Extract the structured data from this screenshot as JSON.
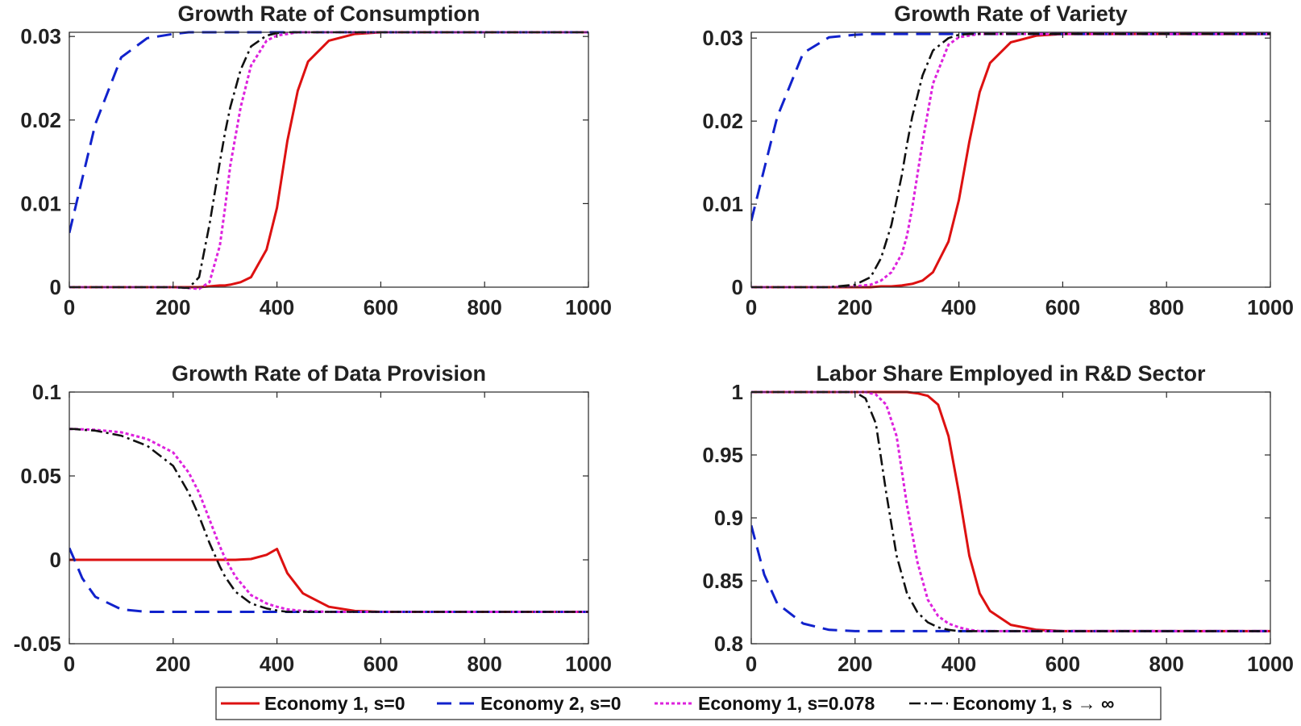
{
  "legend": {
    "entries": [
      {
        "label": "Economy 1, s=0",
        "color": "#dd1111",
        "dash": "solid"
      },
      {
        "label": "Economy 2, s=0",
        "color": "#1122cc",
        "dash": "dashed"
      },
      {
        "label": "Economy 1, s=0.078",
        "color": "#dd22dd",
        "dash": "dotted"
      },
      {
        "label": "Economy 1, s → ∞",
        "color": "#111111",
        "dash": "dashdot"
      }
    ]
  },
  "chart_data": [
    {
      "type": "line",
      "title": "Growth Rate of Consumption",
      "xlim": [
        0,
        1000
      ],
      "ylim": [
        0,
        0.0305
      ],
      "xticks": [
        0,
        200,
        400,
        600,
        800,
        1000
      ],
      "yticks": [
        0,
        0.01,
        0.02,
        0.03
      ],
      "xtick_labels": [
        "0",
        "200",
        "400",
        "600",
        "800",
        "1000"
      ],
      "ytick_labels": [
        "0",
        "0.01",
        "0.02",
        "0.03"
      ],
      "x": [
        0,
        50,
        100,
        150,
        200,
        230,
        250,
        270,
        290,
        300,
        310,
        330,
        350,
        380,
        400,
        420,
        440,
        460,
        500,
        550,
        600,
        700,
        800,
        900,
        1000
      ],
      "series": [
        {
          "name": "Economy 1, s=0",
          "values": [
            0,
            0,
            0,
            0,
            0,
            0,
            0,
            0.0001,
            0.0002,
            0.0002,
            0.0003,
            0.0006,
            0.0012,
            0.0045,
            0.0095,
            0.0175,
            0.0235,
            0.027,
            0.0295,
            0.0303,
            0.0305,
            0.0305,
            0.0305,
            0.0305,
            0.0305
          ]
        },
        {
          "name": "Economy 2, s=0",
          "values": [
            0.0065,
            0.0195,
            0.0275,
            0.0298,
            0.0303,
            0.0305,
            0.0305,
            0.0305,
            0.0305,
            0.0305,
            0.0305,
            0.0305,
            0.0305,
            0.0305,
            0.0305,
            0.0305,
            0.0305,
            0.0305,
            0.0305,
            0.0305,
            0.0305,
            0.0305,
            0.0305,
            0.0305,
            0.0305
          ]
        },
        {
          "name": "Economy 1, s=0.078",
          "values": [
            0,
            0,
            0,
            0,
            0,
            -0.0001,
            -0.0002,
            0.0006,
            0.005,
            0.0095,
            0.0145,
            0.0215,
            0.0265,
            0.0295,
            0.0301,
            0.0303,
            0.0305,
            0.0305,
            0.0305,
            0.0305,
            0.0305,
            0.0305,
            0.0305,
            0.0305,
            0.0305
          ]
        },
        {
          "name": "Economy 1, s → ∞",
          "values": [
            0,
            0,
            0,
            0,
            0,
            -0.0001,
            0.0012,
            0.0075,
            0.015,
            0.0185,
            0.0215,
            0.026,
            0.0288,
            0.0301,
            0.0304,
            0.0305,
            0.0305,
            0.0305,
            0.0305,
            0.0305,
            0.0305,
            0.0305,
            0.0305,
            0.0305,
            0.0305
          ]
        }
      ]
    },
    {
      "type": "line",
      "title": "Growth Rate of Variety",
      "xlim": [
        0,
        1000
      ],
      "ylim": [
        0,
        0.0307
      ],
      "xticks": [
        0,
        200,
        400,
        600,
        800,
        1000
      ],
      "yticks": [
        0,
        0.01,
        0.02,
        0.03
      ],
      "xtick_labels": [
        "0",
        "200",
        "400",
        "600",
        "800",
        "1000"
      ],
      "ytick_labels": [
        "0",
        "0.01",
        "0.02",
        "0.03"
      ],
      "x": [
        0,
        50,
        100,
        150,
        200,
        230,
        250,
        270,
        290,
        300,
        310,
        330,
        350,
        380,
        400,
        420,
        440,
        460,
        500,
        550,
        600,
        700,
        800,
        900,
        1000
      ],
      "series": [
        {
          "name": "Economy 1, s=0",
          "values": [
            0,
            0,
            0,
            0,
            0,
            0,
            0.0001,
            0.0001,
            0.0002,
            0.0003,
            0.0004,
            0.0008,
            0.0018,
            0.0055,
            0.0105,
            0.0175,
            0.0235,
            0.027,
            0.0295,
            0.0303,
            0.0305,
            0.0305,
            0.0305,
            0.0305,
            0.0305
          ]
        },
        {
          "name": "Economy 2, s=0",
          "values": [
            0.008,
            0.0205,
            0.0282,
            0.0301,
            0.0304,
            0.0305,
            0.0305,
            0.0305,
            0.0305,
            0.0305,
            0.0305,
            0.0305,
            0.0305,
            0.0305,
            0.0305,
            0.0305,
            0.0305,
            0.0305,
            0.0305,
            0.0305,
            0.0305,
            0.0305,
            0.0305,
            0.0305,
            0.0305
          ]
        },
        {
          "name": "Economy 1, s=0.078",
          "values": [
            0,
            0,
            0,
            0,
            0.0001,
            0.0003,
            0.0008,
            0.0018,
            0.004,
            0.0062,
            0.0095,
            0.0175,
            0.0245,
            0.0292,
            0.0301,
            0.0303,
            0.0305,
            0.0305,
            0.0305,
            0.0305,
            0.0305,
            0.0305,
            0.0305,
            0.0305,
            0.0305
          ]
        },
        {
          "name": "Economy 1, s → ∞",
          "values": [
            0,
            0,
            0,
            0,
            0.0003,
            0.0012,
            0.0035,
            0.0075,
            0.0135,
            0.0172,
            0.0205,
            0.0255,
            0.0285,
            0.03,
            0.0304,
            0.0305,
            0.0305,
            0.0305,
            0.0305,
            0.0305,
            0.0305,
            0.0305,
            0.0305,
            0.0305,
            0.0305
          ]
        }
      ]
    },
    {
      "type": "line",
      "title": "Growth Rate of Data Provision",
      "xlim": [
        0,
        1000
      ],
      "ylim": [
        -0.05,
        0.1
      ],
      "xticks": [
        0,
        200,
        400,
        600,
        800,
        1000
      ],
      "yticks": [
        -0.05,
        0,
        0.05,
        0.1
      ],
      "xtick_labels": [
        "0",
        "200",
        "400",
        "600",
        "800",
        "1000"
      ],
      "ytick_labels": [
        "-0.05",
        "0",
        "0.05",
        "0.1"
      ],
      "x": [
        0,
        10,
        25,
        50,
        100,
        150,
        200,
        230,
        250,
        270,
        290,
        300,
        320,
        350,
        380,
        400,
        420,
        450,
        500,
        550,
        600,
        700,
        800,
        900,
        1000
      ],
      "series": [
        {
          "name": "Economy 1, s=0",
          "values": [
            0,
            0,
            0,
            0,
            0,
            0,
            0,
            0,
            0,
            0,
            0,
            0,
            0,
            0.0005,
            0.003,
            0.0065,
            -0.008,
            -0.02,
            -0.028,
            -0.0305,
            -0.031,
            -0.031,
            -0.031,
            -0.031,
            -0.031
          ]
        },
        {
          "name": "Economy 2, s=0",
          "values": [
            0.007,
            0,
            -0.011,
            -0.022,
            -0.0295,
            -0.031,
            -0.031,
            -0.031,
            -0.031,
            -0.031,
            -0.031,
            -0.031,
            -0.031,
            -0.031,
            -0.031,
            -0.031,
            -0.031,
            -0.031,
            -0.031,
            -0.031,
            -0.031,
            -0.031,
            -0.031,
            -0.031,
            -0.031
          ]
        },
        {
          "name": "Economy 1, s=0.078",
          "values": [
            0.078,
            0.078,
            0.0778,
            0.0775,
            0.076,
            0.072,
            0.064,
            0.052,
            0.04,
            0.024,
            0.008,
            0.001,
            -0.01,
            -0.021,
            -0.026,
            -0.028,
            -0.0295,
            -0.0305,
            -0.031,
            -0.031,
            -0.031,
            -0.031,
            -0.031,
            -0.031,
            -0.031
          ]
        },
        {
          "name": "Economy 1, s → ∞",
          "values": [
            0.078,
            0.078,
            0.0775,
            0.077,
            0.074,
            0.068,
            0.056,
            0.04,
            0.026,
            0.01,
            -0.004,
            -0.01,
            -0.019,
            -0.026,
            -0.029,
            -0.0302,
            -0.031,
            -0.031,
            -0.031,
            -0.031,
            -0.031,
            -0.031,
            -0.031,
            -0.031,
            -0.031
          ]
        }
      ]
    },
    {
      "type": "line",
      "title": "Labor Share Employed in R&D Sector",
      "xlim": [
        0,
        1000
      ],
      "ylim": [
        0.8,
        1
      ],
      "xticks": [
        0,
        200,
        400,
        600,
        800,
        1000
      ],
      "yticks": [
        0.8,
        0.85,
        0.9,
        0.95,
        1
      ],
      "xtick_labels": [
        "0",
        "200",
        "400",
        "600",
        "800",
        "1000"
      ],
      "ytick_labels": [
        "0.8",
        "0.85",
        "0.9",
        "0.95",
        "1"
      ],
      "x": [
        0,
        25,
        50,
        100,
        150,
        200,
        220,
        240,
        260,
        280,
        300,
        320,
        340,
        360,
        380,
        400,
        420,
        440,
        460,
        500,
        550,
        600,
        700,
        800,
        900,
        1000
      ],
      "series": [
        {
          "name": "Economy 1, s=0",
          "values": [
            1,
            1,
            1,
            1,
            1,
            1,
            1,
            1,
            1,
            1,
            1,
            0.999,
            0.997,
            0.99,
            0.965,
            0.92,
            0.87,
            0.84,
            0.826,
            0.815,
            0.811,
            0.81,
            0.81,
            0.81,
            0.81,
            0.81
          ]
        },
        {
          "name": "Economy 2, s=0",
          "values": [
            0.894,
            0.855,
            0.832,
            0.816,
            0.811,
            0.81,
            0.81,
            0.81,
            0.81,
            0.81,
            0.81,
            0.81,
            0.81,
            0.81,
            0.81,
            0.81,
            0.81,
            0.81,
            0.81,
            0.81,
            0.81,
            0.81,
            0.81,
            0.81,
            0.81,
            0.81
          ]
        },
        {
          "name": "Economy 1, s=0.078",
          "values": [
            1,
            1,
            1,
            1,
            1,
            1,
            1,
            0.998,
            0.99,
            0.965,
            0.91,
            0.865,
            0.835,
            0.822,
            0.816,
            0.813,
            0.811,
            0.81,
            0.81,
            0.81,
            0.81,
            0.81,
            0.81,
            0.81,
            0.81,
            0.81
          ]
        },
        {
          "name": "Economy 1, s → ∞",
          "values": [
            1,
            1,
            1,
            1,
            1,
            1,
            0.995,
            0.975,
            0.92,
            0.87,
            0.84,
            0.825,
            0.817,
            0.813,
            0.811,
            0.81,
            0.81,
            0.81,
            0.81,
            0.81,
            0.81,
            0.81,
            0.81,
            0.81,
            0.81,
            0.81
          ]
        }
      ]
    }
  ]
}
